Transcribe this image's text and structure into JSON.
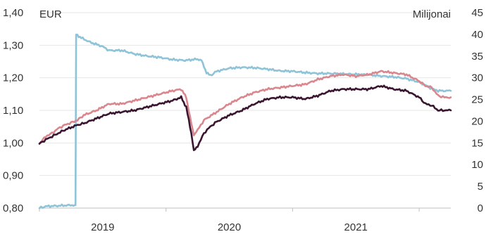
{
  "chart_data": {
    "type": "line",
    "left_axis": {
      "unit": "EUR",
      "range": [
        0.8,
        1.4
      ],
      "ticks": [
        "0,80",
        "0,90",
        "1,00",
        "1,10",
        "1,20",
        "1,30",
        "1,40"
      ],
      "tick_values": [
        0.8,
        0.9,
        1.0,
        1.1,
        1.2,
        1.3,
        1.4
      ]
    },
    "right_axis": {
      "unit": "Milijonai",
      "range": [
        0,
        45
      ],
      "ticks": [
        "0",
        "5",
        "10",
        "15",
        "20",
        "25",
        "30",
        "35",
        "40",
        "45"
      ],
      "tick_values": [
        0,
        5,
        10,
        15,
        20,
        25,
        30,
        35,
        40,
        45
      ]
    },
    "x_axis": {
      "range": [
        2018.0,
        2021.25
      ],
      "ticks": [
        2018.0,
        2019.0,
        2020.0,
        2021.0,
        2022.0
      ],
      "labels": [
        {
          "text": "2019",
          "at": 2018.5
        },
        {
          "text": "2020",
          "at": 2019.5
        },
        {
          "text": "2021",
          "at": 2020.5
        }
      ]
    },
    "grid": "horizontal",
    "series": [
      {
        "axis": "right",
        "color": "#8ec3d8",
        "points": [
          [
            2018.0,
            0.0
          ],
          [
            2018.05,
            0.4
          ],
          [
            2018.2,
            0.6
          ],
          [
            2018.28,
            0.7
          ],
          [
            2018.285,
            0.7
          ],
          [
            2018.29,
            40.0
          ],
          [
            2018.33,
            39.2
          ],
          [
            2018.4,
            38.2
          ],
          [
            2018.5,
            37.2
          ],
          [
            2018.55,
            36.3
          ],
          [
            2018.65,
            36.3
          ],
          [
            2018.75,
            35.5
          ],
          [
            2018.85,
            35.0
          ],
          [
            2018.95,
            34.7
          ],
          [
            2019.05,
            34.2
          ],
          [
            2019.15,
            34.0
          ],
          [
            2019.25,
            34.3
          ],
          [
            2019.28,
            34.0
          ],
          [
            2019.32,
            31.2
          ],
          [
            2019.35,
            30.5
          ],
          [
            2019.4,
            31.5
          ],
          [
            2019.5,
            32.2
          ],
          [
            2019.6,
            32.4
          ],
          [
            2019.7,
            32.3
          ],
          [
            2019.8,
            32.0
          ],
          [
            2019.9,
            31.6
          ],
          [
            2020.0,
            31.5
          ],
          [
            2020.1,
            31.2
          ],
          [
            2020.2,
            31.0
          ],
          [
            2020.3,
            31.0
          ],
          [
            2020.4,
            30.9
          ],
          [
            2020.5,
            30.8
          ],
          [
            2020.6,
            30.7
          ],
          [
            2020.7,
            30.4
          ],
          [
            2020.8,
            30.2
          ],
          [
            2020.9,
            29.8
          ],
          [
            2021.0,
            29.0
          ],
          [
            2021.05,
            28.3
          ],
          [
            2021.1,
            27.5
          ],
          [
            2021.15,
            27.0
          ],
          [
            2021.25,
            27.0
          ]
        ]
      },
      {
        "axis": "left",
        "color": "#d9878e",
        "points": [
          [
            2018.0,
            0.998
          ],
          [
            2018.05,
            1.02
          ],
          [
            2018.1,
            1.03
          ],
          [
            2018.15,
            1.045
          ],
          [
            2018.2,
            1.055
          ],
          [
            2018.25,
            1.062
          ],
          [
            2018.3,
            1.07
          ],
          [
            2018.35,
            1.085
          ],
          [
            2018.45,
            1.1
          ],
          [
            2018.55,
            1.12
          ],
          [
            2018.65,
            1.12
          ],
          [
            2018.75,
            1.13
          ],
          [
            2018.85,
            1.14
          ],
          [
            2018.95,
            1.15
          ],
          [
            2019.05,
            1.16
          ],
          [
            2019.12,
            1.165
          ],
          [
            2019.16,
            1.14
          ],
          [
            2019.2,
            1.06
          ],
          [
            2019.22,
            1.025
          ],
          [
            2019.25,
            1.04
          ],
          [
            2019.3,
            1.07
          ],
          [
            2019.4,
            1.095
          ],
          [
            2019.5,
            1.12
          ],
          [
            2019.6,
            1.14
          ],
          [
            2019.7,
            1.155
          ],
          [
            2019.8,
            1.165
          ],
          [
            2019.9,
            1.17
          ],
          [
            2020.0,
            1.175
          ],
          [
            2020.1,
            1.18
          ],
          [
            2020.2,
            1.195
          ],
          [
            2020.3,
            1.205
          ],
          [
            2020.4,
            1.21
          ],
          [
            2020.5,
            1.205
          ],
          [
            2020.6,
            1.21
          ],
          [
            2020.7,
            1.22
          ],
          [
            2020.8,
            1.215
          ],
          [
            2020.9,
            1.21
          ],
          [
            2021.0,
            1.19
          ],
          [
            2021.05,
            1.175
          ],
          [
            2021.1,
            1.17
          ],
          [
            2021.15,
            1.145
          ],
          [
            2021.2,
            1.14
          ],
          [
            2021.25,
            1.14
          ]
        ]
      },
      {
        "axis": "left",
        "color": "#3a1530",
        "points": [
          [
            2018.0,
            0.998
          ],
          [
            2018.05,
            1.01
          ],
          [
            2018.1,
            1.02
          ],
          [
            2018.15,
            1.03
          ],
          [
            2018.2,
            1.04
          ],
          [
            2018.3,
            1.055
          ],
          [
            2018.35,
            1.06
          ],
          [
            2018.45,
            1.075
          ],
          [
            2018.55,
            1.09
          ],
          [
            2018.65,
            1.095
          ],
          [
            2018.75,
            1.1
          ],
          [
            2018.85,
            1.11
          ],
          [
            2018.95,
            1.12
          ],
          [
            2019.05,
            1.13
          ],
          [
            2019.12,
            1.14
          ],
          [
            2019.16,
            1.11
          ],
          [
            2019.2,
            1.03
          ],
          [
            2019.22,
            0.975
          ],
          [
            2019.25,
            0.99
          ],
          [
            2019.3,
            1.03
          ],
          [
            2019.35,
            1.05
          ],
          [
            2019.4,
            1.065
          ],
          [
            2019.5,
            1.085
          ],
          [
            2019.6,
            1.1
          ],
          [
            2019.7,
            1.12
          ],
          [
            2019.8,
            1.135
          ],
          [
            2019.9,
            1.14
          ],
          [
            2020.0,
            1.14
          ],
          [
            2020.1,
            1.135
          ],
          [
            2020.2,
            1.145
          ],
          [
            2020.3,
            1.16
          ],
          [
            2020.4,
            1.165
          ],
          [
            2020.5,
            1.165
          ],
          [
            2020.6,
            1.165
          ],
          [
            2020.7,
            1.175
          ],
          [
            2020.8,
            1.165
          ],
          [
            2020.9,
            1.16
          ],
          [
            2021.0,
            1.14
          ],
          [
            2021.05,
            1.12
          ],
          [
            2021.1,
            1.115
          ],
          [
            2021.15,
            1.1
          ],
          [
            2021.2,
            1.1
          ],
          [
            2021.25,
            1.1
          ]
        ]
      }
    ]
  }
}
